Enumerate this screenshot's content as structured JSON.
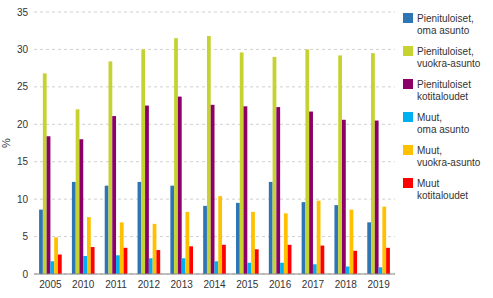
{
  "chart_data": {
    "type": "bar",
    "categories": [
      "2005",
      "2010",
      "2011",
      "2012",
      "2013",
      "2014",
      "2015",
      "2016",
      "2017",
      "2018",
      "2019"
    ],
    "series": [
      {
        "name": "Pienituloiset,\noma asunto",
        "color": "#2E75B6",
        "values": [
          8.6,
          12.3,
          11.8,
          12.3,
          11.8,
          9.1,
          9.5,
          12.3,
          9.6,
          9.2,
          6.9
        ]
      },
      {
        "name": "Pienituloiset,\nvuokra-asunto",
        "color": "#C5D230",
        "values": [
          26.8,
          22.0,
          28.4,
          30.0,
          31.5,
          31.8,
          29.6,
          29.0,
          30.0,
          29.2,
          29.5
        ]
      },
      {
        "name": "Pienituloiset\nkotitaloudet",
        "color": "#8B0069",
        "values": [
          18.4,
          18.0,
          21.1,
          22.5,
          23.7,
          22.6,
          22.4,
          22.3,
          21.7,
          20.6,
          20.5
        ]
      },
      {
        "name": "Muut,\noma asunto",
        "color": "#00B0F0",
        "values": [
          1.7,
          2.4,
          2.5,
          2.1,
          2.1,
          1.7,
          1.5,
          1.5,
          1.3,
          1.0,
          0.9
        ]
      },
      {
        "name": "Muut,\nvuokra-asunto",
        "color": "#FFC000",
        "values": [
          4.9,
          7.6,
          6.9,
          6.7,
          8.3,
          10.4,
          8.3,
          8.1,
          9.8,
          8.6,
          9.0
        ]
      },
      {
        "name": "Muut\nkotitaloudet",
        "color": "#FF0000",
        "values": [
          2.6,
          3.6,
          3.5,
          3.2,
          3.7,
          3.9,
          3.3,
          3.9,
          3.8,
          3.1,
          3.5
        ]
      }
    ],
    "y_label": "%",
    "ylim": [
      0,
      35
    ],
    "yticks": [
      0,
      5,
      10,
      15,
      20,
      25,
      30,
      35
    ],
    "grid": true,
    "legend": "right"
  }
}
